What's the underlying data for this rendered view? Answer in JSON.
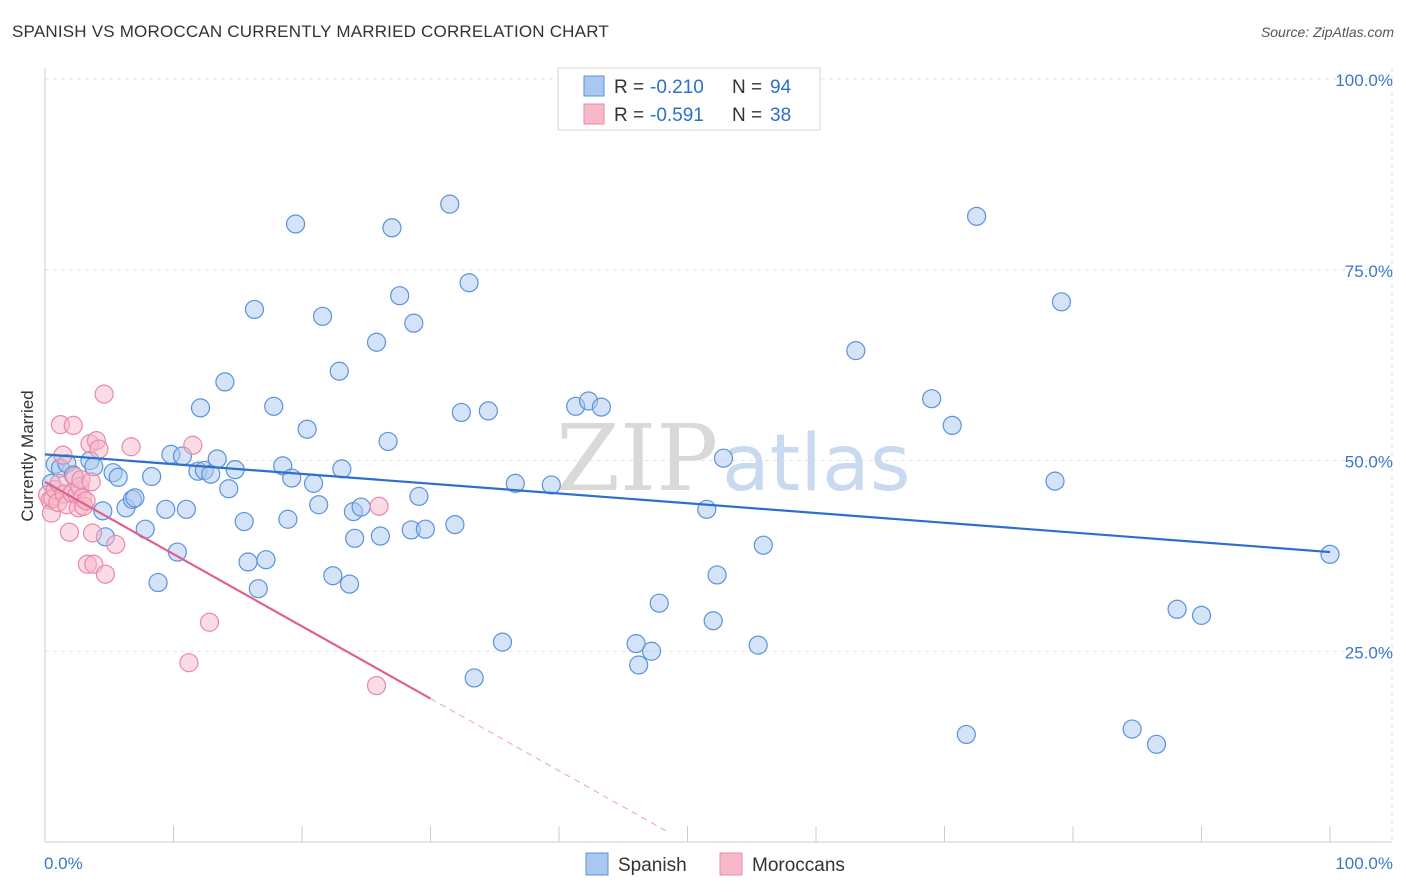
{
  "title": "SPANISH VS MOROCCAN CURRENTLY MARRIED CORRELATION CHART",
  "source": "Source: ZipAtlas.com",
  "watermark": {
    "zip": "ZIP",
    "atlas": "atlas"
  },
  "colors": {
    "blue_fill": "#aac8ef",
    "blue_stroke": "#5b93d9",
    "blue_line": "#2c6fcd",
    "pink_fill": "#f7b8ca",
    "pink_stroke": "#e989a8",
    "pink_line": "#e0608d"
  },
  "legend": {
    "blue": {
      "r_label": "R = ",
      "r_value": "-0.210",
      "n_label": "N = ",
      "n_value": "94"
    },
    "pink": {
      "r_label": "R = ",
      "r_value": "-0.591",
      "n_label": "N = ",
      "n_value": "38"
    }
  },
  "chart_data": {
    "type": "scatter",
    "title": "SPANISH VS MOROCCAN CURRENTLY MARRIED CORRELATION CHART",
    "xlabel": "",
    "ylabel": "Currently Married",
    "xlim": [
      0,
      100
    ],
    "ylim": [
      0,
      100
    ],
    "x_tick_labels": {
      "left": "0.0%",
      "right": "100.0%"
    },
    "y_ticks": [
      {
        "value": 100,
        "label": "100.0%"
      },
      {
        "value": 75,
        "label": "75.0%"
      },
      {
        "value": 50,
        "label": "50.0%"
      },
      {
        "value": 25,
        "label": "25.0%"
      }
    ],
    "grid": true,
    "legend_position": "bottom-center",
    "series": [
      {
        "name": "Spanish",
        "color": "#5b93d9",
        "trend": {
          "x0": 0,
          "y0": 50.8,
          "x1": 100,
          "y1": 38.0
        },
        "points": [
          [
            0.5,
            47.0
          ],
          [
            0.8,
            49.5
          ],
          [
            1.2,
            49.0
          ],
          [
            1.7,
            49.6
          ],
          [
            2.2,
            48.1
          ],
          [
            3.5,
            50.0
          ],
          [
            3.8,
            49.2
          ],
          [
            4.5,
            43.4
          ],
          [
            4.7,
            40.0
          ],
          [
            5.3,
            48.4
          ],
          [
            5.7,
            47.8
          ],
          [
            6.3,
            43.8
          ],
          [
            6.8,
            44.9
          ],
          [
            7.0,
            45.1
          ],
          [
            7.8,
            41.0
          ],
          [
            8.3,
            47.9
          ],
          [
            8.8,
            34.0
          ],
          [
            9.4,
            43.6
          ],
          [
            9.8,
            50.8
          ],
          [
            10.3,
            38.0
          ],
          [
            10.7,
            50.6
          ],
          [
            11.0,
            43.6
          ],
          [
            11.9,
            48.6
          ],
          [
            12.1,
            56.9
          ],
          [
            12.4,
            48.7
          ],
          [
            12.9,
            48.2
          ],
          [
            13.4,
            50.2
          ],
          [
            14.0,
            60.3
          ],
          [
            14.3,
            46.3
          ],
          [
            14.8,
            48.8
          ],
          [
            15.5,
            42.0
          ],
          [
            15.8,
            36.7
          ],
          [
            16.3,
            69.8
          ],
          [
            16.6,
            33.2
          ],
          [
            17.2,
            37.0
          ],
          [
            17.8,
            57.1
          ],
          [
            18.5,
            49.3
          ],
          [
            18.9,
            42.3
          ],
          [
            19.2,
            47.7
          ],
          [
            19.5,
            81.0
          ],
          [
            20.4,
            54.1
          ],
          [
            20.9,
            47.0
          ],
          [
            21.3,
            44.2
          ],
          [
            21.6,
            68.9
          ],
          [
            22.4,
            34.9
          ],
          [
            22.9,
            61.7
          ],
          [
            23.1,
            48.9
          ],
          [
            23.7,
            33.8
          ],
          [
            24.0,
            43.3
          ],
          [
            24.1,
            39.8
          ],
          [
            24.6,
            43.9
          ],
          [
            25.8,
            65.5
          ],
          [
            26.1,
            40.1
          ],
          [
            26.7,
            52.5
          ],
          [
            27.0,
            80.5
          ],
          [
            27.6,
            71.6
          ],
          [
            28.5,
            40.9
          ],
          [
            28.7,
            68.0
          ],
          [
            29.1,
            45.3
          ],
          [
            29.6,
            41.0
          ],
          [
            31.5,
            83.6
          ],
          [
            31.9,
            41.6
          ],
          [
            32.4,
            56.3
          ],
          [
            33.0,
            73.3
          ],
          [
            33.4,
            21.5
          ],
          [
            34.5,
            56.5
          ],
          [
            35.6,
            26.2
          ],
          [
            36.6,
            47.0
          ],
          [
            39.4,
            46.8
          ],
          [
            41.3,
            57.1
          ],
          [
            42.3,
            57.8
          ],
          [
            43.3,
            57.0
          ],
          [
            46.0,
            26.0
          ],
          [
            46.2,
            23.2
          ],
          [
            47.2,
            25.0
          ],
          [
            47.8,
            31.3
          ],
          [
            51.5,
            43.6
          ],
          [
            52.0,
            29.0
          ],
          [
            52.3,
            35.0
          ],
          [
            52.8,
            50.3
          ],
          [
            55.5,
            25.8
          ],
          [
            55.9,
            38.9
          ],
          [
            63.1,
            64.4
          ],
          [
            69.0,
            58.1
          ],
          [
            70.6,
            54.6
          ],
          [
            71.7,
            14.1
          ],
          [
            72.5,
            82.0
          ],
          [
            78.6,
            47.3
          ],
          [
            79.1,
            70.8
          ],
          [
            84.6,
            14.8
          ],
          [
            86.5,
            12.8
          ],
          [
            88.1,
            30.5
          ],
          [
            90.0,
            29.7
          ],
          [
            100.0,
            37.7
          ]
        ]
      },
      {
        "name": "Moroccans",
        "color": "#e989a8",
        "trend": {
          "x0": 0,
          "y0": 47.2,
          "x1": 30,
          "y1": 18.8,
          "dash_x1": 48.5,
          "dash_y1": 1.3
        },
        "points": [
          [
            0.2,
            45.5
          ],
          [
            0.4,
            44.8
          ],
          [
            0.5,
            43.1
          ],
          [
            0.6,
            45.0
          ],
          [
            0.8,
            46.2
          ],
          [
            1.0,
            44.5
          ],
          [
            1.1,
            47.0
          ],
          [
            1.2,
            54.7
          ],
          [
            1.4,
            50.7
          ],
          [
            1.5,
            45.6
          ],
          [
            1.7,
            44.2
          ],
          [
            1.9,
            40.6
          ],
          [
            2.1,
            45.7
          ],
          [
            2.2,
            54.6
          ],
          [
            2.3,
            47.9
          ],
          [
            2.5,
            45.5
          ],
          [
            2.6,
            43.8
          ],
          [
            2.7,
            46.6
          ],
          [
            2.8,
            47.5
          ],
          [
            2.9,
            45.1
          ],
          [
            3.0,
            44.0
          ],
          [
            3.2,
            44.7
          ],
          [
            3.3,
            36.4
          ],
          [
            3.5,
            52.2
          ],
          [
            3.6,
            47.2
          ],
          [
            3.7,
            40.5
          ],
          [
            3.8,
            36.4
          ],
          [
            4.0,
            52.6
          ],
          [
            4.2,
            51.5
          ],
          [
            4.6,
            58.7
          ],
          [
            4.7,
            35.1
          ],
          [
            5.5,
            39.0
          ],
          [
            6.7,
            51.8
          ],
          [
            11.2,
            23.5
          ],
          [
            11.5,
            52.0
          ],
          [
            12.8,
            28.8
          ],
          [
            25.8,
            20.5
          ],
          [
            26.0,
            44.0
          ]
        ]
      }
    ]
  },
  "bottom_legend": [
    {
      "label": "Spanish"
    },
    {
      "label": "Moroccans"
    }
  ]
}
